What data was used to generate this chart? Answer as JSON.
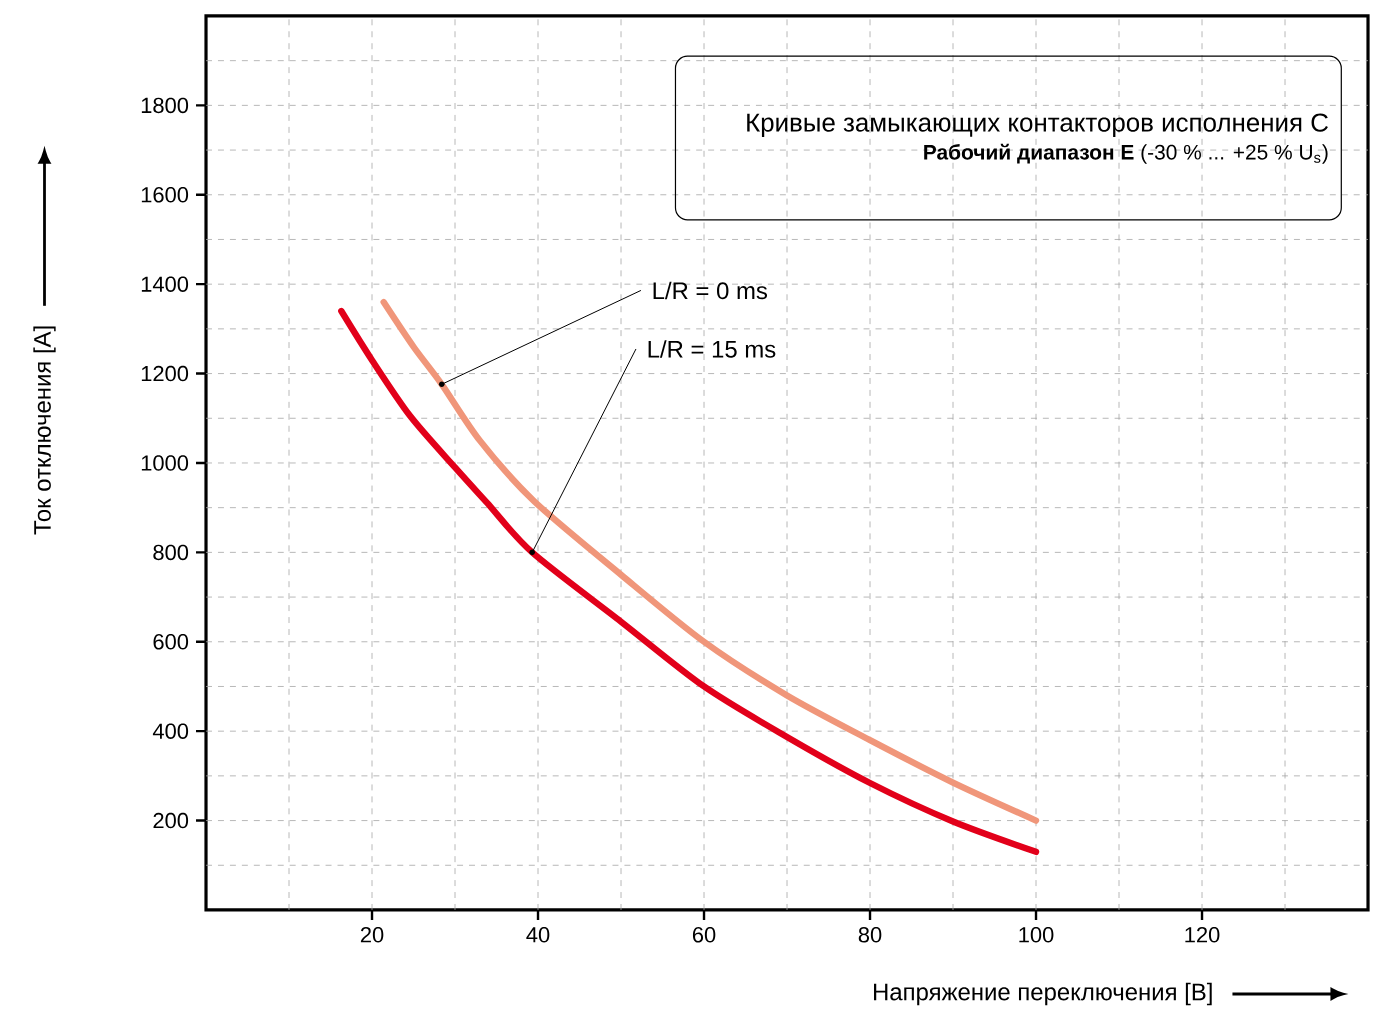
{
  "chart_data": {
    "type": "line",
    "title": "Кривые замыкающих контакторов исполнения C",
    "subtitle": "**Рабочий диапазон E** (-30 % ... +25 % U$_{s}$)",
    "xlabel": "Напряжение переключения [B]",
    "ylabel": "Ток отключения  [A]",
    "xlim": [
      0,
      140
    ],
    "ylim": [
      0,
      2000
    ],
    "xticks": [
      20,
      40,
      60,
      80,
      100,
      120
    ],
    "yticks": [
      200,
      400,
      600,
      800,
      1000,
      1200,
      1400,
      1600,
      1800
    ],
    "grid": true,
    "legend": false,
    "marker": "none",
    "line_style": "solid",
    "series": [
      {
        "name": "L/R = 0 ms",
        "color": "#f0967a",
        "x": [
          21.4,
          25,
          28.4,
          33,
          39.5,
          50,
          60,
          70,
          80,
          90,
          100
        ],
        "values": [
          1360,
          1260,
          1176,
          1050,
          915,
          750,
          600,
          480,
          380,
          285,
          200
        ]
      },
      {
        "name": "L/R = 15 ms",
        "color": "#e2001a",
        "x": [
          16.3,
          20,
          24.6,
          30,
          33.9,
          39.3,
          50,
          60,
          70,
          80,
          90,
          100
        ],
        "values": [
          1340,
          1230,
          1105,
          990,
          910,
          800,
          645,
          500,
          387,
          284,
          198,
          130
        ]
      }
    ]
  }
}
